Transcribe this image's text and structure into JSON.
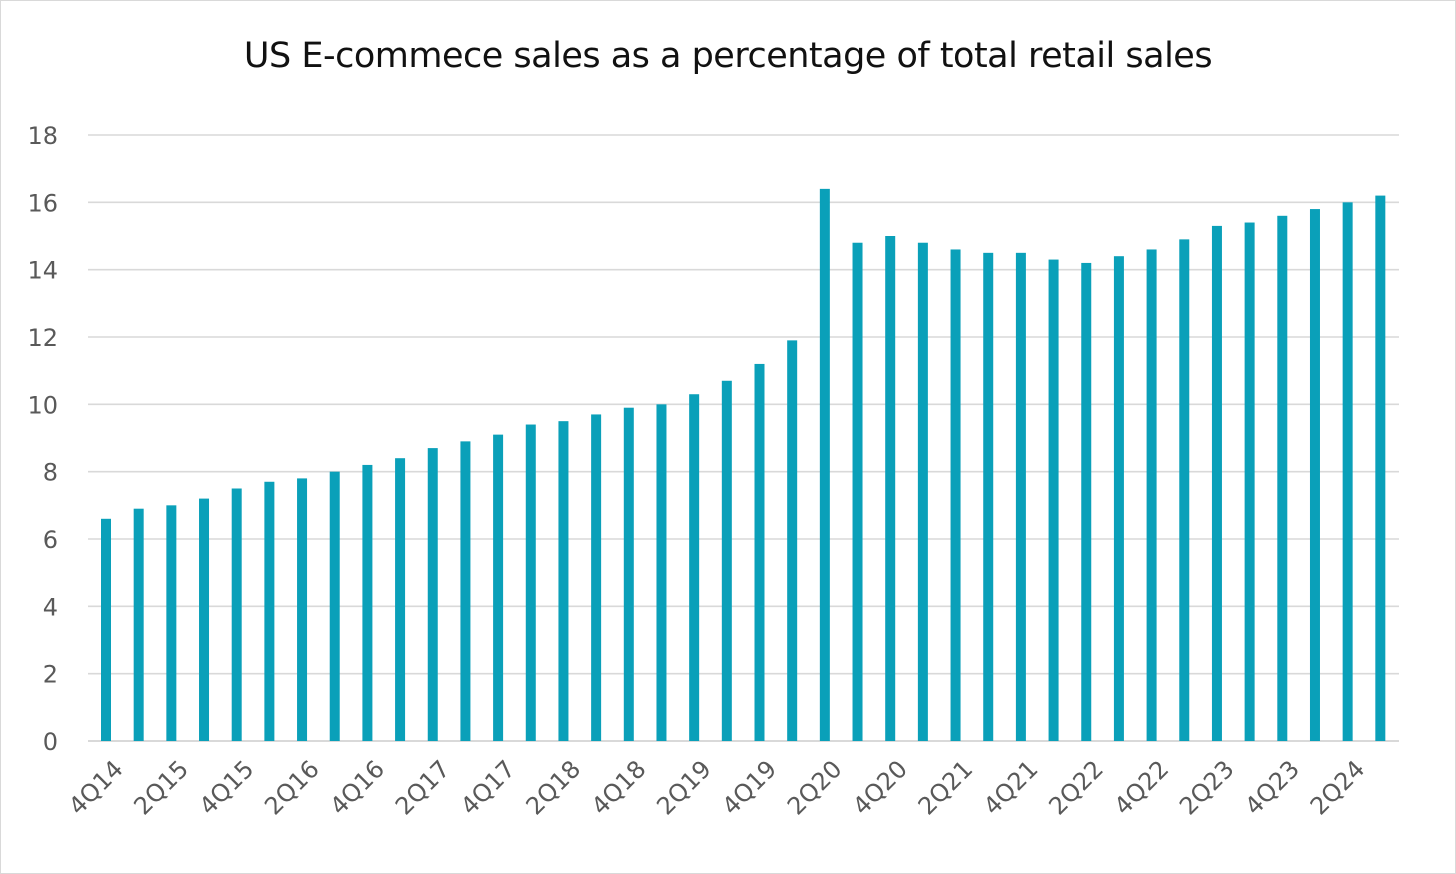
{
  "chart_data": {
    "type": "bar",
    "title": "US E-commece sales as a percentage of total retail sales",
    "xlabel": "",
    "ylabel": "",
    "ylim": [
      0,
      18
    ],
    "yticks": [
      0,
      2,
      4,
      6,
      8,
      10,
      12,
      14,
      16,
      18
    ],
    "grid": true,
    "legend": "none",
    "bar_color": "#0aa0b9",
    "grid_color": "#d9d9d9",
    "categories": [
      "4Q14",
      "1Q15",
      "2Q15",
      "3Q15",
      "4Q15",
      "1Q16",
      "2Q16",
      "3Q16",
      "4Q16",
      "1Q17",
      "2Q17",
      "3Q17",
      "4Q17",
      "1Q18",
      "2Q18",
      "3Q18",
      "4Q18",
      "1Q19",
      "2Q19",
      "3Q19",
      "4Q19",
      "1Q20",
      "2Q20",
      "3Q20",
      "4Q20",
      "1Q21",
      "2Q21",
      "3Q21",
      "4Q21",
      "1Q22",
      "2Q22",
      "3Q22",
      "4Q22",
      "1Q23",
      "2Q23",
      "3Q23",
      "4Q23",
      "1Q24",
      "2Q24",
      "3Q24"
    ],
    "values": [
      6.6,
      6.9,
      7.0,
      7.2,
      7.5,
      7.7,
      7.8,
      8.0,
      8.2,
      8.4,
      8.7,
      8.9,
      9.1,
      9.4,
      9.5,
      9.7,
      9.9,
      10.0,
      10.3,
      10.7,
      11.2,
      11.9,
      16.4,
      14.8,
      15.0,
      14.8,
      14.6,
      14.5,
      14.5,
      14.3,
      14.2,
      14.4,
      14.6,
      14.9,
      15.3,
      15.4,
      15.6,
      15.8,
      16.0,
      16.2
    ],
    "xtick_labels": [
      "4Q14",
      "2Q15",
      "4Q15",
      "2Q16",
      "4Q16",
      "2Q17",
      "4Q17",
      "2Q18",
      "4Q18",
      "2Q19",
      "4Q19",
      "2Q20",
      "4Q20",
      "2Q21",
      "4Q21",
      "2Q22",
      "4Q22",
      "2Q23",
      "4Q23",
      "2Q24"
    ]
  }
}
